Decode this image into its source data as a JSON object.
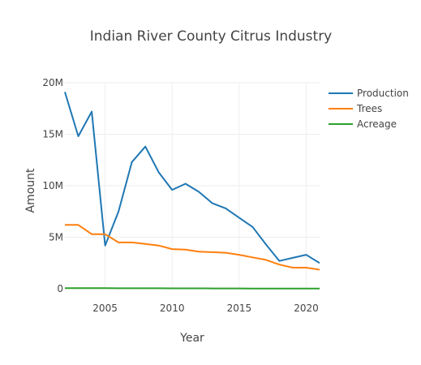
{
  "chart_data": {
    "type": "line",
    "title": "Indian River County Citrus Industry",
    "xlabel": "Year",
    "ylabel": "Amount",
    "xlim": [
      2002,
      2021
    ],
    "ylim": [
      0,
      20000000
    ],
    "x_ticks": [
      2005,
      2010,
      2015,
      2020
    ],
    "x_tick_labels": [
      "2005",
      "2010",
      "2015",
      "2020"
    ],
    "y_ticks": [
      0,
      5000000,
      10000000,
      15000000,
      20000000
    ],
    "y_tick_labels": [
      "0",
      "5M",
      "10M",
      "15M",
      "20M"
    ],
    "grid": true,
    "legend_position": "top-right",
    "series": [
      {
        "name": "Production",
        "color": "#1f77b4",
        "x": [
          2002,
          2003,
          2004,
          2005,
          2006,
          2007,
          2008,
          2009,
          2010,
          2011,
          2012,
          2013,
          2014,
          2015,
          2016,
          2017,
          2018,
          2019,
          2020,
          2021
        ],
        "y": [
          19100000,
          14800000,
          17200000,
          4200000,
          7500000,
          12300000,
          13800000,
          11300000,
          9600000,
          10200000,
          9400000,
          8300000,
          7800000,
          6900000,
          6000000,
          4300000,
          2700000,
          3000000,
          3300000,
          2500000
        ]
      },
      {
        "name": "Trees",
        "color": "#ff7f0e",
        "x": [
          2002,
          2003,
          2004,
          2005,
          2006,
          2007,
          2008,
          2009,
          2010,
          2011,
          2012,
          2013,
          2014,
          2015,
          2016,
          2017,
          2018,
          2019,
          2020,
          2021
        ],
        "y": [
          6200000,
          6200000,
          5300000,
          5300000,
          4500000,
          4500000,
          4350000,
          4200000,
          3850000,
          3800000,
          3600000,
          3550000,
          3500000,
          3300000,
          3050000,
          2800000,
          2350000,
          2050000,
          2050000,
          1850000
        ]
      },
      {
        "name": "Acreage",
        "color": "#2ca02c",
        "x": [
          2002,
          2003,
          2004,
          2005,
          2006,
          2007,
          2008,
          2009,
          2010,
          2011,
          2012,
          2013,
          2014,
          2015,
          2016,
          2017,
          2018,
          2019,
          2020,
          2021
        ],
        "y": [
          60000,
          60000,
          55000,
          55000,
          50000,
          50000,
          48000,
          45000,
          42000,
          40000,
          38000,
          35000,
          32000,
          30000,
          27000,
          25000,
          22000,
          20000,
          19000,
          18000
        ]
      }
    ]
  }
}
